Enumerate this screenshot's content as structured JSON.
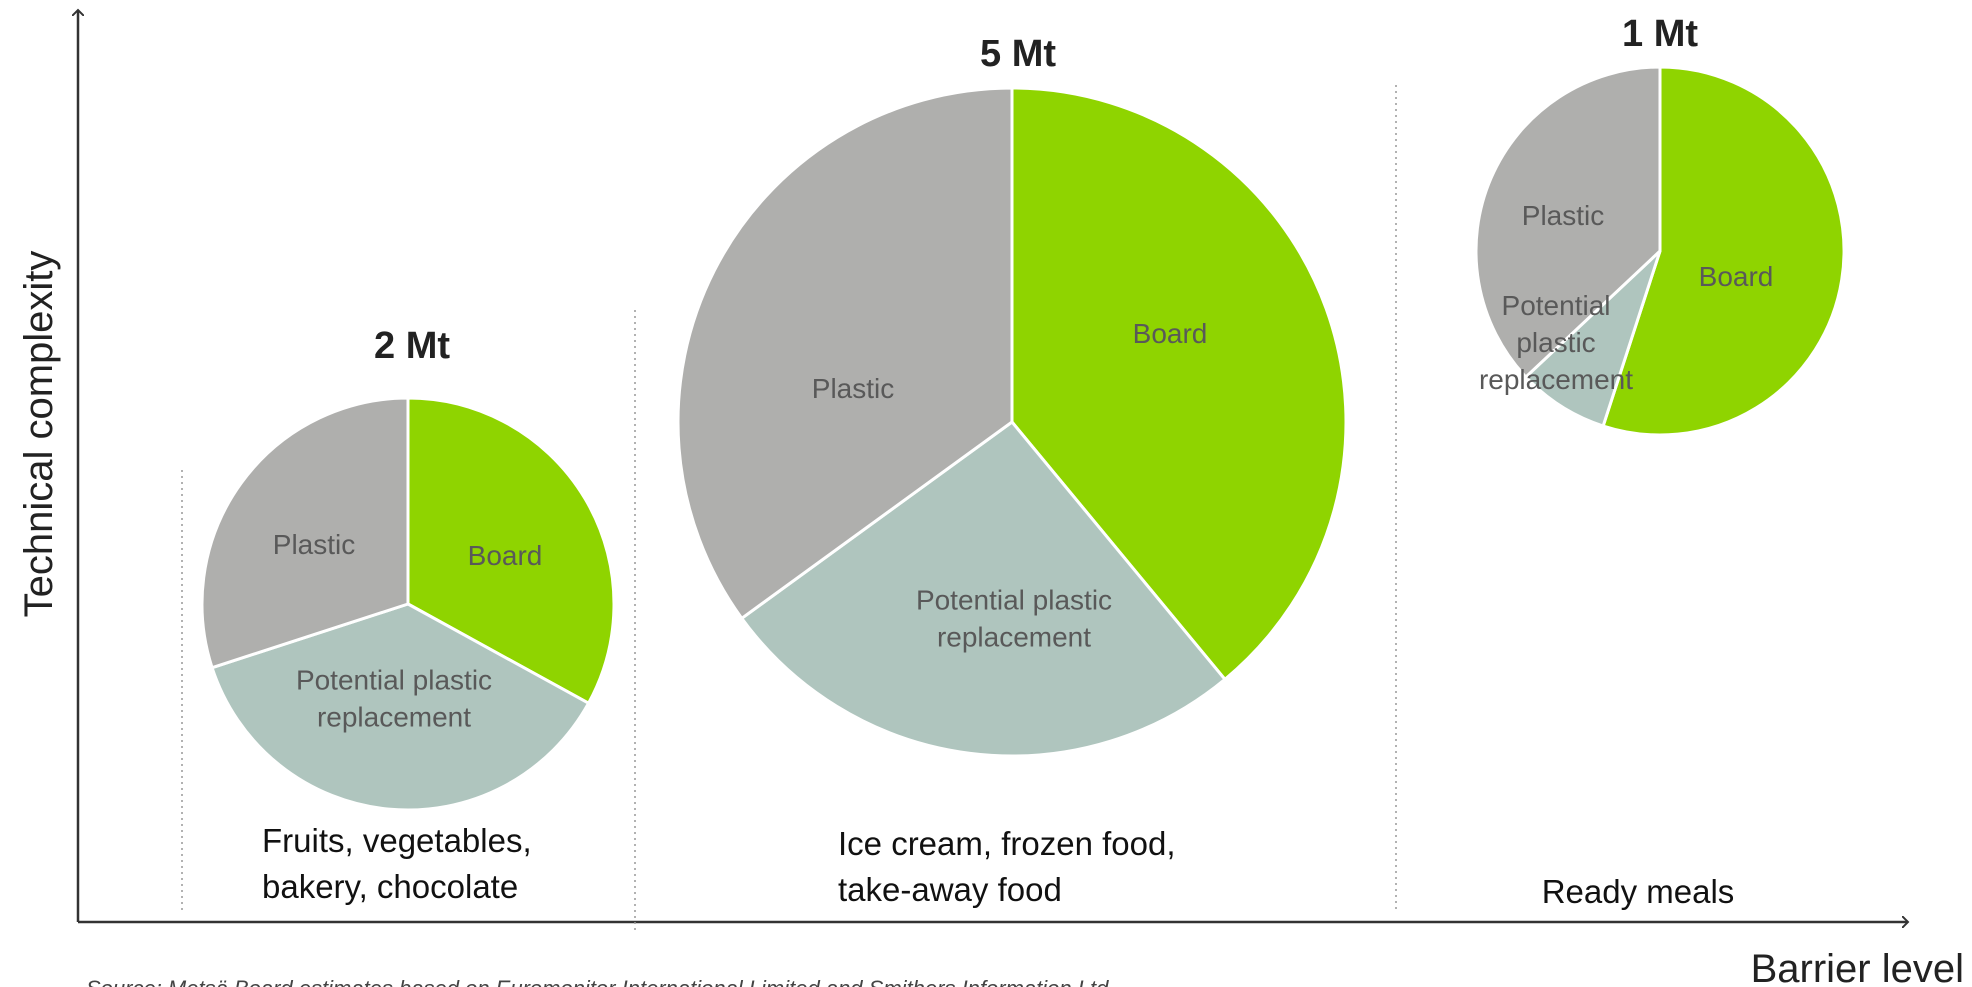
{
  "chart_data": {
    "type": "pie",
    "xlabel": "Barrier level",
    "ylabel": "Technical complexity",
    "source": "Source: Metsä Board estimates based on Euromonitor International Limited and Smithers Information Ltd",
    "slice_colors": {
      "Board": "#8fd400",
      "Potential plastic replacement": "#afc5be",
      "Plastic": "#afafad"
    },
    "groups": [
      {
        "category_lines": [
          "Fruits, vegetables,",
          "bakery, chocolate"
        ],
        "total": "2 Mt",
        "slices": [
          {
            "name": "Board",
            "label_lines": [
              "Board"
            ],
            "share": 0.33
          },
          {
            "name": "Potential plastic replacement",
            "label_lines": [
              "Potential plastic",
              "replacement"
            ],
            "share": 0.37
          },
          {
            "name": "Plastic",
            "label_lines": [
              "Plastic"
            ],
            "share": 0.3
          }
        ]
      },
      {
        "category_lines": [
          "Ice cream, frozen food,",
          "take-away food"
        ],
        "total": "5 Mt",
        "slices": [
          {
            "name": "Board",
            "label_lines": [
              "Board"
            ],
            "share": 0.39
          },
          {
            "name": "Potential plastic replacement",
            "label_lines": [
              "Potential plastic",
              "replacement"
            ],
            "share": 0.26
          },
          {
            "name": "Plastic",
            "label_lines": [
              "Plastic"
            ],
            "share": 0.35
          }
        ]
      },
      {
        "category_lines": [
          "Ready meals"
        ],
        "total": "1 Mt",
        "slices": [
          {
            "name": "Board",
            "label_lines": [
              "Board"
            ],
            "share": 0.55
          },
          {
            "name": "Potential plastic replacement",
            "label_lines": [
              "Potential",
              "plastic",
              "replacement"
            ],
            "share": 0.08
          },
          {
            "name": "Plastic",
            "label_lines": [
              "Plastic"
            ],
            "share": 0.37
          }
        ]
      }
    ]
  }
}
